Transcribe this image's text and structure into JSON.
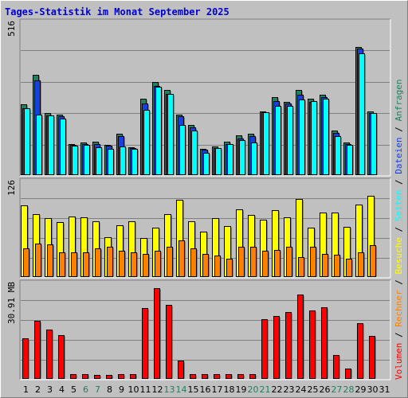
{
  "title": "Tages-Statistik im Monat September 2025",
  "chart_data": [
    {
      "type": "bar",
      "panel": "top",
      "categories": [
        "1",
        "2",
        "3",
        "4",
        "5",
        "6",
        "7",
        "8",
        "9",
        "10",
        "11",
        "12",
        "13",
        "14",
        "15",
        "16",
        "17",
        "18",
        "19",
        "20",
        "21",
        "22",
        "23",
        "24",
        "25",
        "26",
        "27",
        "28",
        "29",
        "30",
        "31"
      ],
      "max_label": "516",
      "ylim": [
        0,
        516
      ],
      "series": [
        {
          "name": "Anfragen",
          "color": "#208060",
          "values": [
            240,
            340,
            210,
            206,
            105,
            109,
            113,
            101,
            140,
            92,
            260,
            316,
            290,
            205,
            170,
            88,
            96,
            112,
            133,
            138,
            216,
            264,
            248,
            290,
            259,
            274,
            149,
            108,
            438,
            217,
            0
          ]
        },
        {
          "name": "Dateien",
          "color": "#1840e0",
          "values": [
            226,
            322,
            202,
            200,
            101,
            104,
            104,
            97,
            132,
            90,
            244,
            304,
            276,
            198,
            160,
            84,
            90,
            105,
            122,
            130,
            212,
            252,
            242,
            274,
            248,
            265,
            143,
            105,
            430,
            210,
            0
          ]
        },
        {
          "name": "Seiten",
          "color": "#00ffff",
          "values": [
            226,
            204,
            202,
            192,
            99,
            101,
            92,
            87,
            96,
            88,
            222,
            300,
            276,
            170,
            150,
            75,
            91,
            105,
            118,
            110,
            212,
            236,
            236,
            256,
            252,
            260,
            132,
            100,
            416,
            210,
            0
          ]
        }
      ]
    },
    {
      "type": "bar",
      "panel": "middle",
      "categories": [
        "1",
        "2",
        "3",
        "4",
        "5",
        "6",
        "7",
        "8",
        "9",
        "10",
        "11",
        "12",
        "13",
        "14",
        "15",
        "16",
        "17",
        "18",
        "19",
        "20",
        "21",
        "22",
        "23",
        "24",
        "25",
        "26",
        "27",
        "28",
        "29",
        "30",
        "31"
      ],
      "max_label": "126",
      "ylim": [
        0,
        126
      ],
      "series": [
        {
          "name": "Besuche",
          "color": "#ffff00",
          "values": [
            96,
            84,
            79,
            73,
            81,
            80,
            74,
            53,
            69,
            74,
            52,
            66,
            84,
            103,
            74,
            60,
            79,
            68,
            90,
            83,
            76,
            89,
            80,
            104,
            66,
            86,
            86,
            67,
            97,
            109,
            0
          ]
        },
        {
          "name": "Rechner",
          "color": "#ff8000",
          "values": [
            38,
            44,
            43,
            32,
            32,
            32,
            38,
            40,
            34,
            32,
            30,
            34,
            40,
            48,
            38,
            30,
            28,
            24,
            40,
            40,
            34,
            36,
            40,
            26,
            40,
            30,
            29,
            24,
            32,
            42,
            0
          ]
        }
      ]
    },
    {
      "type": "bar",
      "panel": "bottom",
      "categories": [
        "1",
        "2",
        "3",
        "4",
        "5",
        "6",
        "7",
        "8",
        "9",
        "10",
        "11",
        "12",
        "13",
        "14",
        "15",
        "16",
        "17",
        "18",
        "19",
        "20",
        "21",
        "22",
        "23",
        "24",
        "25",
        "26",
        "27",
        "28",
        "29",
        "30",
        "31"
      ],
      "max_label": "30.91 MB",
      "ylim": [
        0,
        30.91
      ],
      "series": [
        {
          "name": "Volumen",
          "color": "#ff0000",
          "values": [
            13.1,
            18.9,
            16.1,
            14.3,
            1.2,
            1.2,
            1.1,
            1.0,
            1.2,
            1.2,
            23.3,
            29.8,
            24.2,
            5.8,
            1.3,
            1.2,
            1.4,
            1.4,
            1.3,
            1.3,
            19.5,
            20.6,
            22.0,
            27.8,
            22.4,
            23.5,
            7.6,
            3.3,
            18.1,
            14.1,
            0
          ]
        }
      ]
    }
  ],
  "x_label_colors": {
    "weekday": "#000000",
    "weekend": "#208060"
  },
  "weekend_days": [
    "6",
    "7",
    "13",
    "14",
    "20",
    "21",
    "27",
    "28"
  ],
  "legend": [
    {
      "label": "Volumen",
      "color": "#ff0000"
    },
    {
      "label": "/",
      "color": "#000000"
    },
    {
      "label": "Rechner",
      "color": "#ff8000"
    },
    {
      "label": "/",
      "color": "#000000"
    },
    {
      "label": "Besuche",
      "color": "#ffff00"
    },
    {
      "label": "/",
      "color": "#000000"
    },
    {
      "label": "Seiten",
      "color": "#00ffff"
    },
    {
      "label": "/",
      "color": "#000000"
    },
    {
      "label": "Dateien",
      "color": "#1840e0"
    },
    {
      "label": "/",
      "color": "#000000"
    },
    {
      "label": "Anfragen",
      "color": "#208060"
    }
  ]
}
